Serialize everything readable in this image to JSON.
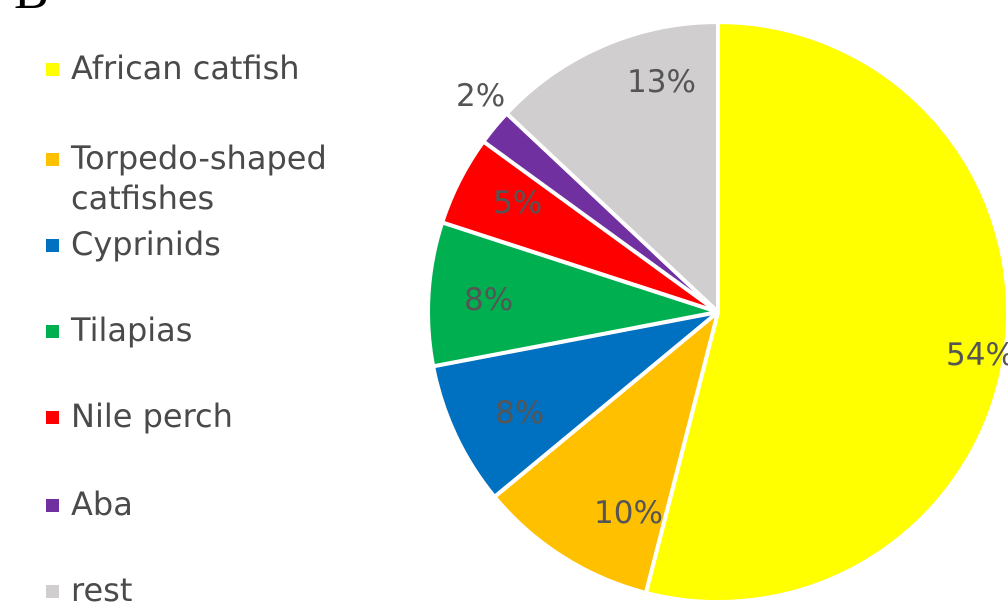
{
  "chart_data": {
    "type": "pie",
    "panel_letter": "B",
    "title": "",
    "legend_position": "left",
    "slices": [
      {
        "label": "African catfish",
        "value": 54,
        "display": "54%",
        "color": "#FFFF00"
      },
      {
        "label": "Torpedo-shaped catfishes",
        "value": 10,
        "display": "10%",
        "color": "#FFC000"
      },
      {
        "label": "Cyprinids",
        "value": 8,
        "display": "8%",
        "color": "#0070C0"
      },
      {
        "label": "Tilapias",
        "value": 8,
        "display": "8%",
        "color": "#00B050"
      },
      {
        "label": "Nile perch",
        "value": 5,
        "display": "5%",
        "color": "#FF0000"
      },
      {
        "label": "Aba",
        "value": 2,
        "display": "2%",
        "color": "#7030A0"
      },
      {
        "label": "rest",
        "value": 13,
        "display": "13%",
        "color": "#D0CECE"
      }
    ]
  }
}
